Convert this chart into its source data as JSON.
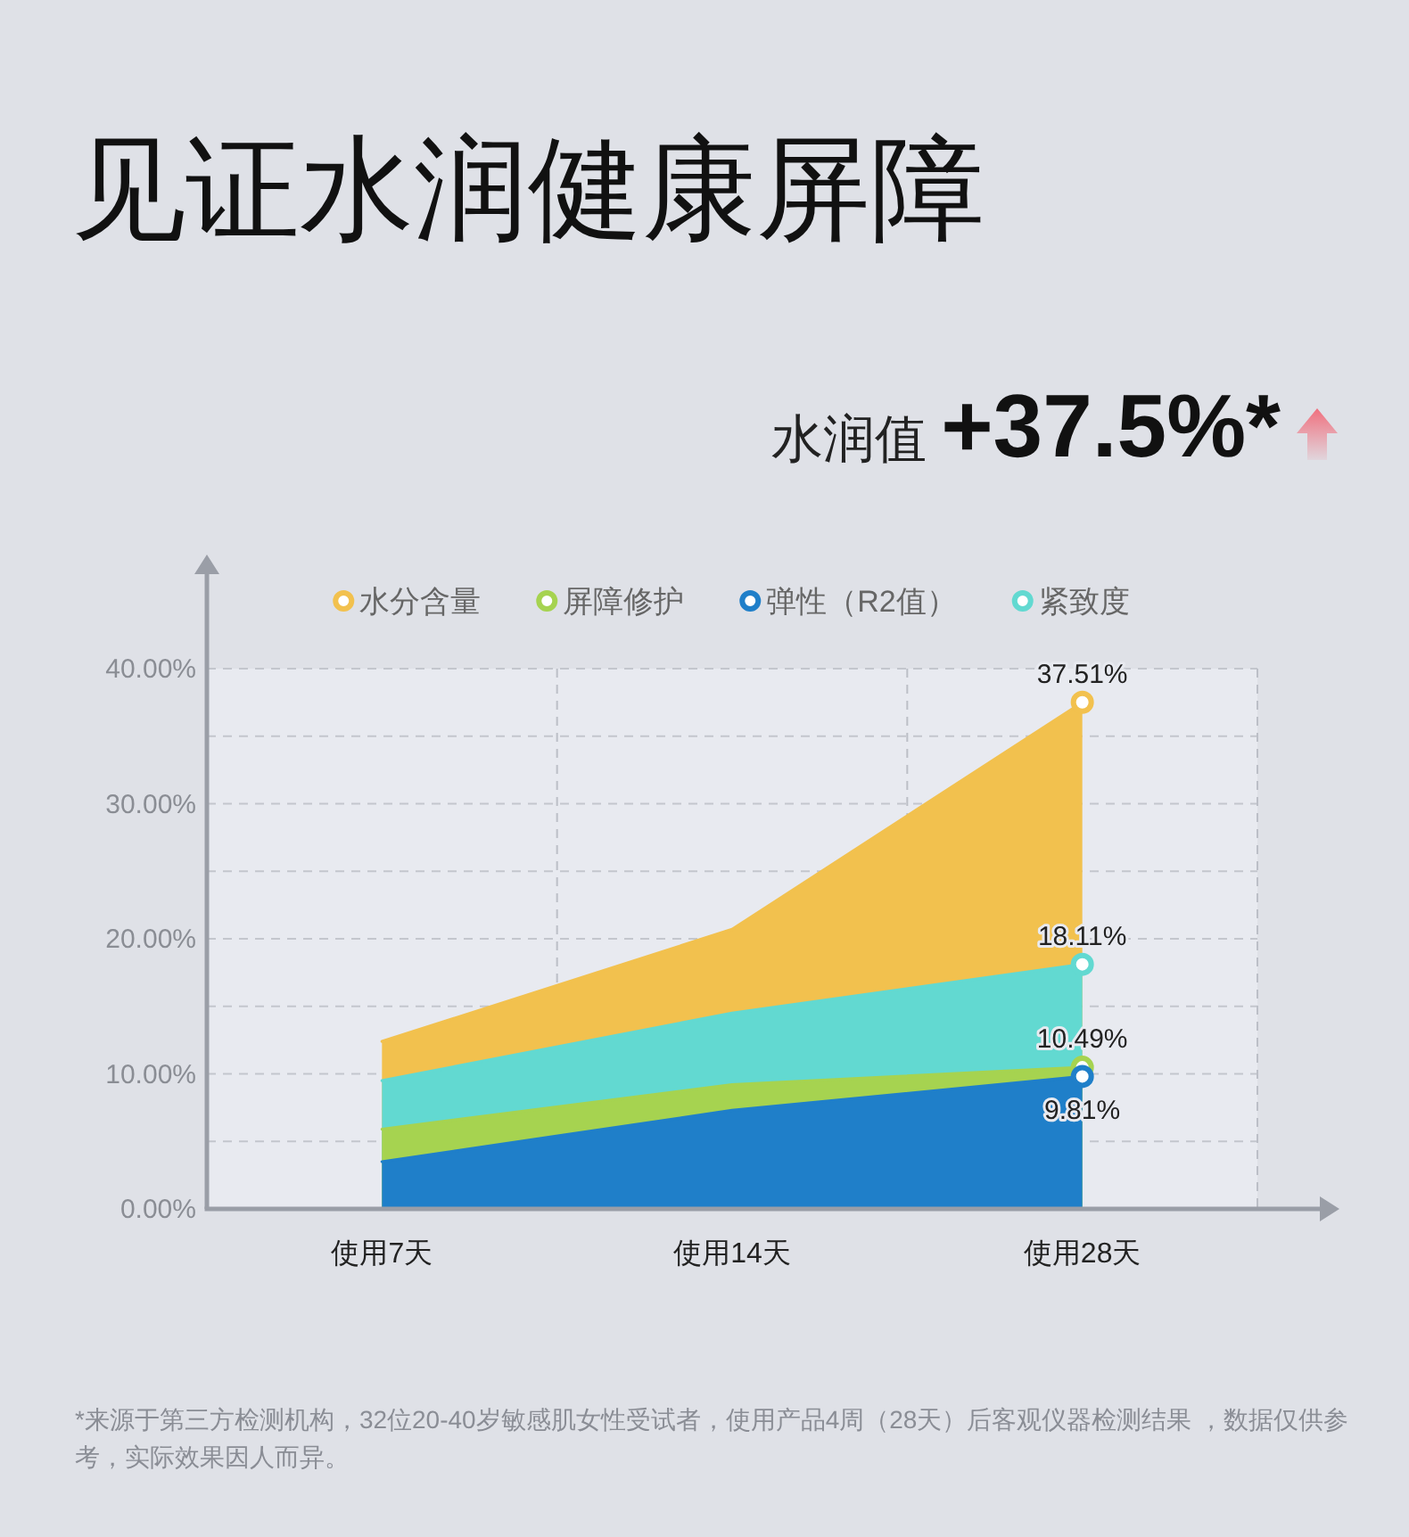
{
  "chart_data": {
    "type": "area",
    "title": "见证水润健康屏障",
    "subtitle": "水润值 +37.5%*",
    "categories": [
      "使用7天",
      "使用14天",
      "使用28天"
    ],
    "ylim": [
      0,
      40
    ],
    "yticks": [
      {
        "value": 0,
        "label": "0.00%"
      },
      {
        "value": 5,
        "label": null
      },
      {
        "value": 10,
        "label": "10.00%"
      },
      {
        "value": 15,
        "label": null
      },
      {
        "value": 20,
        "label": "20.00%"
      },
      {
        "value": 25,
        "label": null
      },
      {
        "value": 30,
        "label": "30.00%"
      },
      {
        "value": 35,
        "label": null
      },
      {
        "value": 40,
        "label": "40.00%"
      }
    ],
    "grid": true,
    "series": [
      {
        "name": "水分含量",
        "color": "#f2c14e",
        "values": [
          12.4,
          20.7,
          37.51
        ],
        "value_labels": [
          null,
          null,
          "37.51%"
        ]
      },
      {
        "name": "屏障修护",
        "color": "#a6d350",
        "values": [
          5.9,
          9.2,
          10.49
        ],
        "value_labels": [
          null,
          null,
          "10.49%"
        ]
      },
      {
        "name": "弹性（R2值）",
        "color": "#1f7fc9",
        "values": [
          3.5,
          7.3,
          9.81
        ],
        "value_labels": [
          null,
          null,
          "9.81%"
        ]
      },
      {
        "name": "紧致度",
        "color": "#62d9d1",
        "values": [
          9.5,
          14.5,
          18.11
        ],
        "value_labels": [
          null,
          null,
          "18.11%"
        ]
      }
    ],
    "line_style": "solid",
    "legend": "top",
    "annotations": [
      "*来源于第三方检测机构，32位20-40岁敏感肌女性受试者，使用产品4周（28天）后客观仪器检测结果 ，数据仅供参考，实际效果因人而异。"
    ]
  }
}
